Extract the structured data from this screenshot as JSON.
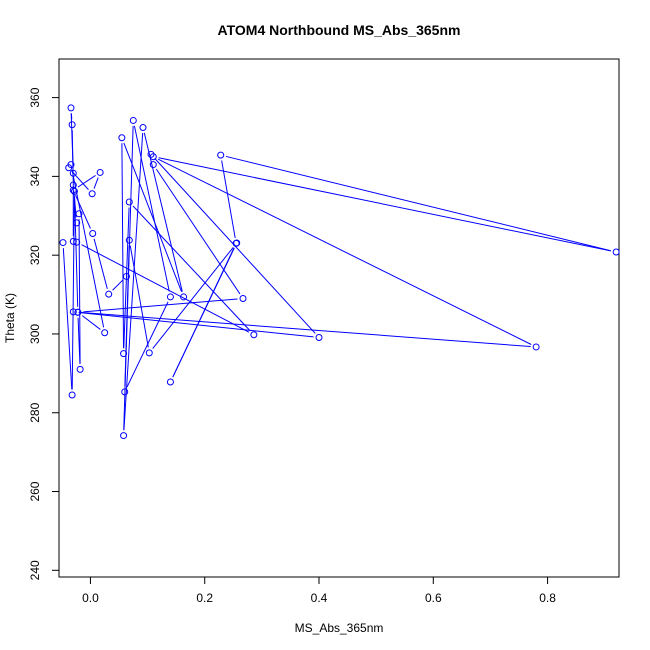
{
  "chart_data": {
    "type": "line",
    "title": "ATOM4 Northbound MS_Abs_365nm",
    "xlabel": "MS_Abs_365nm",
    "ylabel": "Theta (K)",
    "xlim": [
      -0.055,
      0.925
    ],
    "ylim": [
      238.3,
      369.8
    ],
    "xticks": [
      0.0,
      0.2,
      0.4,
      0.6,
      0.8
    ],
    "xtick_labels": [
      "0.0",
      "0.2",
      "0.4",
      "0.6",
      "0.8"
    ],
    "yticks": [
      240,
      260,
      280,
      300,
      320,
      340,
      360
    ],
    "ytick_labels": [
      "240",
      "260",
      "280",
      "300",
      "320",
      "340",
      "360"
    ],
    "grid": false,
    "legend": "none",
    "series_color": "#0000ff",
    "marker": "open-circle",
    "points": [
      {
        "x": -0.048,
        "y": 323.2
      },
      {
        "x": -0.032,
        "y": 284.5
      },
      {
        "x": -0.028,
        "y": 336.2
      },
      {
        "x": -0.022,
        "y": 305.5
      },
      {
        "x": -0.018,
        "y": 291.0
      },
      {
        "x": -0.02,
        "y": 330.5
      },
      {
        "x": -0.024,
        "y": 328.2
      },
      {
        "x": -0.03,
        "y": 337.8
      },
      {
        "x": -0.032,
        "y": 353.1
      },
      {
        "x": -0.034,
        "y": 357.4
      },
      {
        "x": -0.03,
        "y": 340.8
      },
      {
        "x": -0.03,
        "y": 323.5
      },
      {
        "x": -0.024,
        "y": 323.3
      },
      {
        "x": 0.286,
        "y": 299.8
      },
      {
        "x": 0.068,
        "y": 333.5
      },
      {
        "x": 0.058,
        "y": 295.0
      },
      {
        "x": 0.055,
        "y": 349.8
      },
      {
        "x": 0.163,
        "y": 309.4
      },
      {
        "x": 0.092,
        "y": 352.4
      },
      {
        "x": 0.058,
        "y": 274.2
      },
      {
        "x": 0.075,
        "y": 354.2
      },
      {
        "x": 0.14,
        "y": 309.4
      },
      {
        "x": 0.06,
        "y": 285.3
      },
      {
        "x": 0.068,
        "y": 323.8
      },
      {
        "x": 0.103,
        "y": 295.2
      },
      {
        "x": 0.256,
        "y": 323.1
      },
      {
        "x": 0.14,
        "y": 287.8
      },
      {
        "x": 0.255,
        "y": 323.0
      },
      {
        "x": 0.228,
        "y": 345.4
      },
      {
        "x": 0.92,
        "y": 320.8
      },
      {
        "x": 0.11,
        "y": 345.0
      },
      {
        "x": 0.78,
        "y": 296.7
      },
      {
        "x": -0.03,
        "y": 305.6
      },
      {
        "x": 0.4,
        "y": 299.1
      },
      {
        "x": 0.106,
        "y": 345.6
      },
      {
        "x": 0.11,
        "y": 343.0
      },
      {
        "x": 0.267,
        "y": 309.0
      },
      {
        "x": -0.022,
        "y": 305.5
      },
      {
        "x": 0.025,
        "y": 300.3
      },
      {
        "x": -0.034,
        "y": 343.0
      },
      {
        "x": -0.038,
        "y": 342.2
      },
      {
        "x": 0.003,
        "y": 335.6
      },
      {
        "x": 0.017,
        "y": 341.0
      },
      {
        "x": -0.03,
        "y": 336.5
      },
      {
        "x": 0.004,
        "y": 325.5
      },
      {
        "x": 0.032,
        "y": 310.1
      },
      {
        "x": 0.063,
        "y": 314.6
      }
    ]
  }
}
